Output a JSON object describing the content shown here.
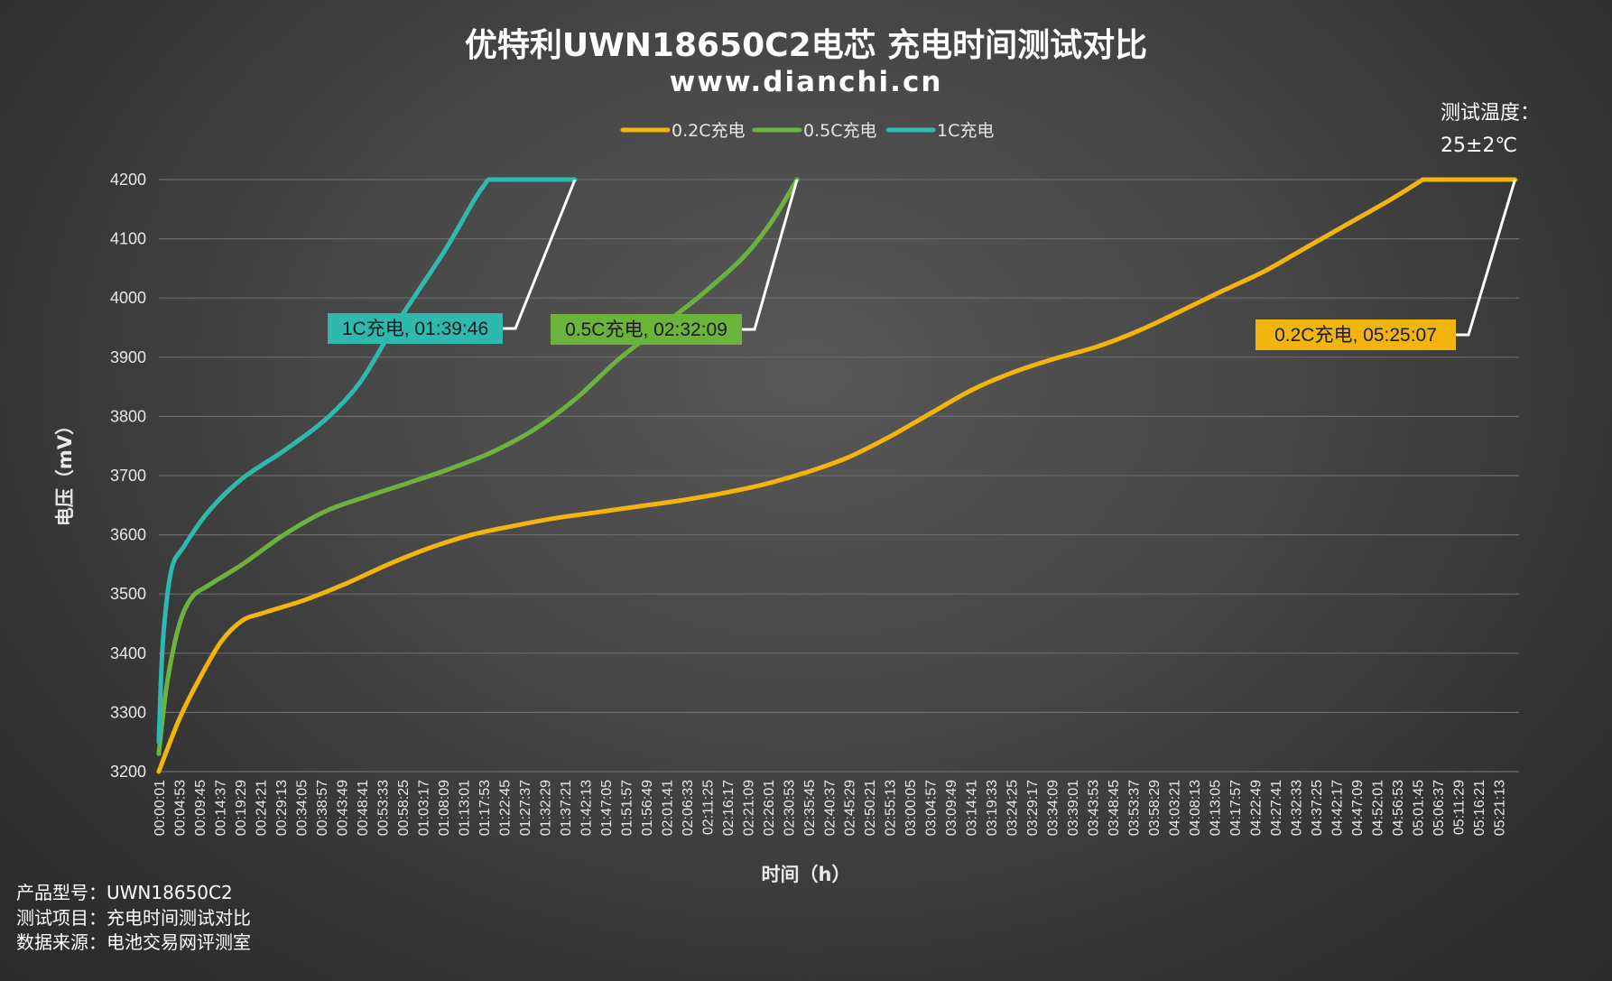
{
  "chart_data": {
    "type": "line",
    "title": "优特利UWN18650C2电芯 充电时间测试对比",
    "subtitle": "www.dianchi.cn",
    "xlabel": "时间（h）",
    "ylabel": "电压（mV）",
    "ylim": [
      3200,
      4200
    ],
    "yticks": [
      3200,
      3300,
      3400,
      3500,
      3600,
      3700,
      3800,
      3900,
      4000,
      4100,
      4200
    ],
    "x_unit": "seconds",
    "x_tick_labels": [
      "00:00:01",
      "00:04:53",
      "00:09:45",
      "00:14:37",
      "00:19:29",
      "00:24:21",
      "00:29:13",
      "00:34:05",
      "00:38:57",
      "00:43:49",
      "00:48:41",
      "00:53:33",
      "00:58:25",
      "01:03:17",
      "01:08:09",
      "01:13:01",
      "01:17:53",
      "01:22:45",
      "01:27:37",
      "01:32:29",
      "01:37:21",
      "01:42:13",
      "01:47:05",
      "01:51:57",
      "01:56:49",
      "02:01:41",
      "02:06:33",
      "02:11:25",
      "02:16:17",
      "02:21:09",
      "02:26:01",
      "02:30:53",
      "02:35:45",
      "02:40:37",
      "02:45:29",
      "02:50:21",
      "02:55:13",
      "03:00:05",
      "03:04:57",
      "03:09:49",
      "03:14:41",
      "03:19:33",
      "03:24:25",
      "03:29:17",
      "03:34:09",
      "03:39:01",
      "03:43:53",
      "03:48:45",
      "03:53:37",
      "03:58:29",
      "04:03:21",
      "04:08:13",
      "04:13:05",
      "04:17:57",
      "04:22:49",
      "04:27:41",
      "04:32:33",
      "04:37:25",
      "04:42:17",
      "04:47:09",
      "04:52:01",
      "04:56:53",
      "05:01:45",
      "05:06:37",
      "05:11:29",
      "05:16:21",
      "05:21:13"
    ],
    "grid": true,
    "legend_position": "top-center",
    "series": [
      {
        "name": "0.2C充电",
        "color": "#f2b50d",
        "points": [
          [
            0,
            3200
          ],
          [
            300,
            3290
          ],
          [
            600,
            3360
          ],
          [
            900,
            3420
          ],
          [
            1200,
            3455
          ],
          [
            1500,
            3468
          ],
          [
            2100,
            3490
          ],
          [
            2700,
            3518
          ],
          [
            3300,
            3550
          ],
          [
            3900,
            3578
          ],
          [
            4500,
            3600
          ],
          [
            5100,
            3615
          ],
          [
            5700,
            3628
          ],
          [
            6300,
            3638
          ],
          [
            6900,
            3648
          ],
          [
            7500,
            3658
          ],
          [
            8100,
            3670
          ],
          [
            8700,
            3685
          ],
          [
            9300,
            3705
          ],
          [
            9900,
            3730
          ],
          [
            10500,
            3765
          ],
          [
            11100,
            3805
          ],
          [
            11700,
            3845
          ],
          [
            12300,
            3875
          ],
          [
            12900,
            3898
          ],
          [
            13500,
            3918
          ],
          [
            14100,
            3945
          ],
          [
            14700,
            3978
          ],
          [
            15300,
            4012
          ],
          [
            15900,
            4045
          ],
          [
            16500,
            4085
          ],
          [
            17100,
            4125
          ],
          [
            17700,
            4165
          ],
          [
            18180,
            4200
          ],
          [
            19507,
            4200
          ]
        ],
        "end_label": "0.2C充电, 05:25:07"
      },
      {
        "name": "0.5C充电",
        "color": "#6cb33e",
        "points": [
          [
            0,
            3230
          ],
          [
            120,
            3350
          ],
          [
            300,
            3450
          ],
          [
            480,
            3495
          ],
          [
            720,
            3515
          ],
          [
            1200,
            3550
          ],
          [
            1800,
            3600
          ],
          [
            2400,
            3640
          ],
          [
            3000,
            3665
          ],
          [
            3600,
            3688
          ],
          [
            4200,
            3712
          ],
          [
            4800,
            3740
          ],
          [
            5400,
            3778
          ],
          [
            6000,
            3830
          ],
          [
            6600,
            3895
          ],
          [
            7200,
            3950
          ],
          [
            7800,
            4005
          ],
          [
            8400,
            4068
          ],
          [
            8820,
            4130
          ],
          [
            9180,
            4200
          ],
          [
            9129,
            4200
          ]
        ],
        "end_label": "0.5C充电, 02:32:09"
      },
      {
        "name": "1C充电",
        "color": "#2fb8ad",
        "points": [
          [
            0,
            3250
          ],
          [
            60,
            3420
          ],
          [
            180,
            3540
          ],
          [
            360,
            3580
          ],
          [
            720,
            3640
          ],
          [
            1200,
            3695
          ],
          [
            1800,
            3742
          ],
          [
            2400,
            3795
          ],
          [
            2880,
            3855
          ],
          [
            3300,
            3935
          ],
          [
            3720,
            4010
          ],
          [
            4140,
            4085
          ],
          [
            4560,
            4170
          ],
          [
            4740,
            4200
          ],
          [
            5986,
            4200
          ]
        ],
        "end_label": "1C充电, 01:39:46"
      }
    ]
  },
  "legend": [
    "0.2C充电",
    "0.5C充电",
    "1C充电"
  ],
  "temperature_note": {
    "line1": "测试温度：",
    "line2": "25±2℃"
  },
  "footer": {
    "line1": "产品型号：UWN18650C2",
    "line2": "测试项目：充电时间测试对比",
    "line3": "数据来源：电池交易网评测室"
  }
}
